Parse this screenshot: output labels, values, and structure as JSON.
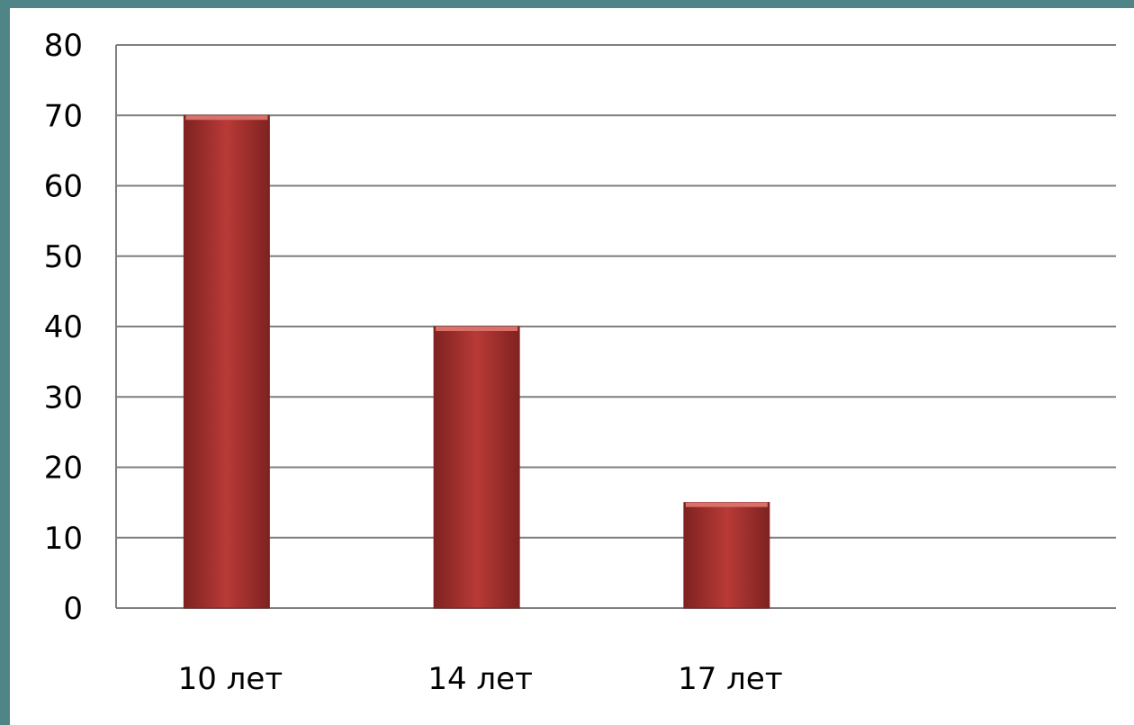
{
  "chart_data": {
    "type": "bar",
    "categories": [
      "10 лет",
      "14 лет",
      "17 лет",
      ""
    ],
    "values": [
      70,
      40,
      15,
      null
    ],
    "title": "",
    "xlabel": "",
    "ylabel": "",
    "ylim": [
      0,
      80
    ],
    "yticks": [
      "0",
      "10",
      "20",
      "30",
      "40",
      "50",
      "60",
      "70",
      "80"
    ],
    "grid": true,
    "legend": "none",
    "colors": {
      "bar": "#b83a36",
      "bar_dark": "#7e2221",
      "grid": "#7f7f7f",
      "background": "#4f8586",
      "plot": "#ffffff"
    }
  }
}
